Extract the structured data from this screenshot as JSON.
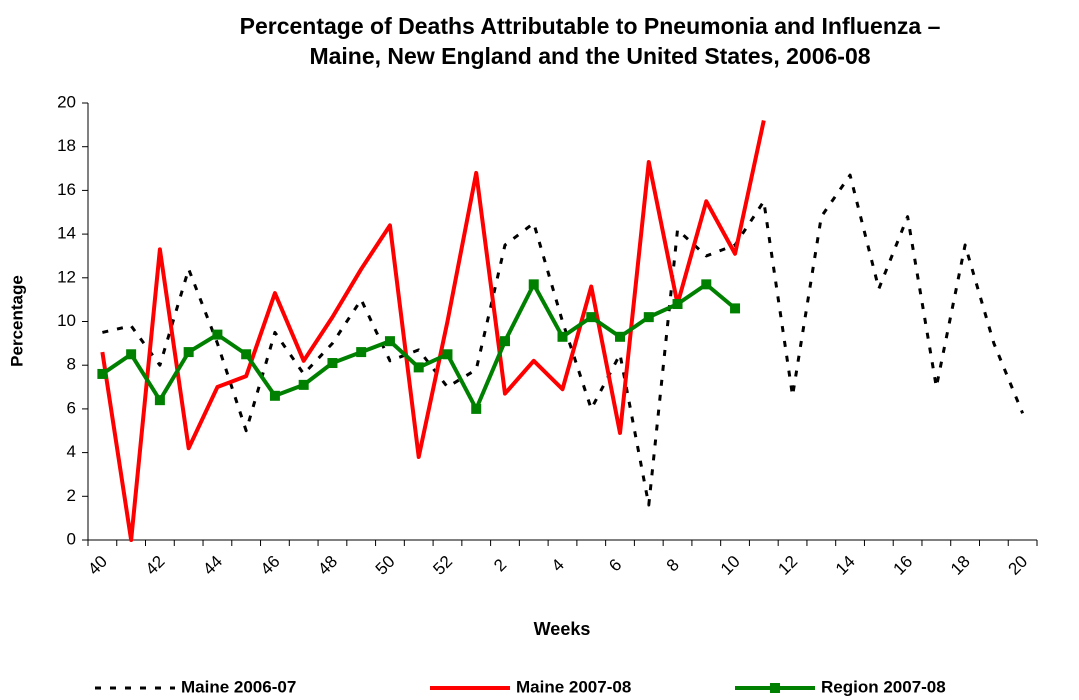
{
  "chart_data": {
    "type": "line",
    "title": [
      "Percentage of Deaths Attributable to Pneumonia and Influenza –",
      "Maine, New England and the United States, 2006-08"
    ],
    "x_label": "Weeks",
    "y_label": "Percentage",
    "categories": [
      40,
      null,
      42,
      null,
      44,
      null,
      46,
      null,
      48,
      null,
      50,
      null,
      52,
      null,
      2,
      null,
      4,
      null,
      6,
      null,
      8,
      null,
      10,
      null,
      12,
      null,
      14,
      null,
      16,
      null,
      18,
      null,
      20
    ],
    "series": [
      {
        "name": "Maine 2006-07",
        "color": "#000000",
        "dash": true,
        "marker": false,
        "values": [
          9.5,
          9.8,
          8,
          12.4,
          9,
          5,
          9.5,
          7.6,
          9,
          11,
          8.2,
          8.7,
          7,
          7.8,
          13.5,
          14.5,
          10,
          6,
          8.5,
          1.6,
          14.2,
          13,
          13.5,
          15.5,
          6.6,
          14.8,
          16.7,
          11.5,
          14.8,
          7,
          13.5,
          9,
          5.8
        ]
      },
      {
        "name": "Maine 2007-08",
        "color": "#ff0000",
        "dash": false,
        "marker": false,
        "values": [
          8.6,
          0,
          13.3,
          4.2,
          7,
          7.5,
          11.3,
          8.2,
          10.2,
          12.4,
          14.4,
          3.8,
          10,
          16.8,
          6.7,
          8.2,
          6.9,
          11.6,
          4.9,
          17.3,
          10.8,
          15.5,
          13.1,
          19.2,
          null,
          null,
          null,
          null,
          null,
          null,
          null,
          null,
          null
        ]
      },
      {
        "name": "Region 2007-08",
        "color": "#008000",
        "dash": false,
        "marker": true,
        "values": [
          7.6,
          8.5,
          6.4,
          8.6,
          9.4,
          8.5,
          6.6,
          7.1,
          8.1,
          8.6,
          9.1,
          7.9,
          8.5,
          6,
          9.1,
          11.7,
          9.3,
          10.2,
          9.3,
          10.2,
          10.8,
          11.7,
          10.6,
          null,
          null,
          null,
          null,
          null,
          null,
          null,
          null,
          null,
          null
        ]
      }
    ],
    "ylim": [
      0,
      20
    ],
    "yticks": [
      0,
      2,
      4,
      6,
      8,
      10,
      12,
      14,
      16,
      18,
      20
    ]
  }
}
